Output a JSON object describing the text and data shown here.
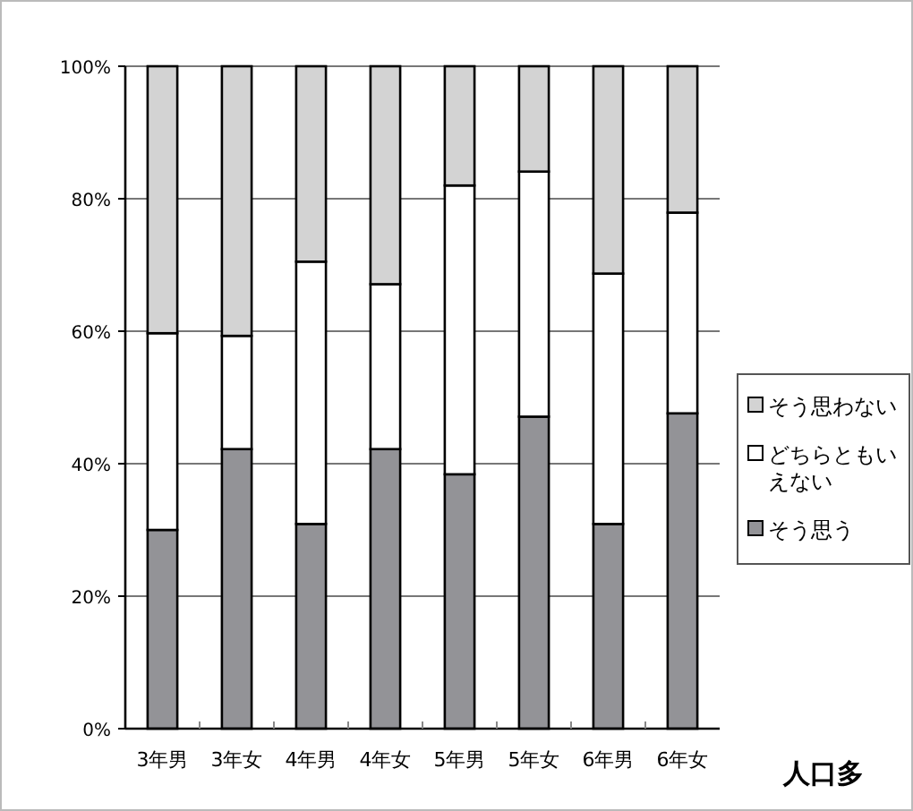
{
  "chart_data": {
    "type": "bar",
    "stacked": true,
    "categories": [
      "3年男",
      "3年女",
      "4年男",
      "4年女",
      "5年男",
      "5年女",
      "6年男",
      "6年女"
    ],
    "series": [
      {
        "name": "そう思う",
        "color": "#939397",
        "values": [
          30,
          42.2,
          30.9,
          42.2,
          38.4,
          47.1,
          30.9,
          47.6
        ]
      },
      {
        "name": "どちらともいえない",
        "color": "#ffffff",
        "values": [
          29.7,
          17.1,
          39.6,
          24.9,
          43.6,
          37,
          37.8,
          30.3
        ]
      },
      {
        "name": "そう思わない",
        "color": "#d3d3d3",
        "values": [
          40.3,
          40.7,
          29.5,
          32.9,
          18,
          15.9,
          31.3,
          22.1
        ]
      }
    ],
    "ylim": [
      0,
      100
    ],
    "yticks": [
      {
        "value": 0,
        "label": "0%"
      },
      {
        "value": 20,
        "label": "20%"
      },
      {
        "value": 40,
        "label": "40%"
      },
      {
        "value": 60,
        "label": "60%"
      },
      {
        "value": 80,
        "label": "80%"
      },
      {
        "value": 100,
        "label": "100%"
      }
    ],
    "grid": "y",
    "legend": "right",
    "annotations": [
      "人口多"
    ]
  }
}
